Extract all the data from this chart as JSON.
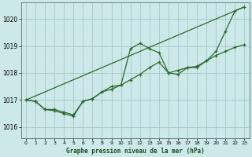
{
  "title": "Graphe pression niveau de la mer (hPa)",
  "bg_color": "#cce8e8",
  "grid_color": "#aacccc",
  "line_color": "#2d6a2d",
  "xlim": [
    -0.5,
    23.5
  ],
  "ylim": [
    1015.6,
    1020.6
  ],
  "yticks": [
    1016,
    1017,
    1018,
    1019,
    1020
  ],
  "xticks": [
    0,
    1,
    2,
    3,
    4,
    5,
    6,
    7,
    8,
    9,
    10,
    11,
    12,
    13,
    14,
    15,
    16,
    17,
    18,
    19,
    20,
    21,
    22,
    23
  ],
  "series1_x": [
    0,
    1,
    2,
    3,
    4,
    5,
    6,
    7,
    8,
    9,
    10,
    11,
    12,
    13,
    14,
    15,
    16,
    17,
    18,
    19,
    20,
    21,
    22,
    23
  ],
  "series1_y": [
    1017.0,
    1016.95,
    1016.65,
    1016.6,
    1016.5,
    1016.4,
    1016.95,
    1017.05,
    1017.3,
    1017.5,
    1017.55,
    1018.9,
    1019.1,
    1018.9,
    1018.75,
    1018.0,
    1017.95,
    1018.2,
    1018.2,
    1018.45,
    1018.8,
    1019.55,
    1020.3,
    1020.45
  ],
  "series2_x": [
    0,
    1,
    2,
    3,
    4,
    5,
    6,
    7,
    8,
    9,
    10,
    11,
    12,
    13,
    14,
    15,
    16,
    17,
    18,
    19,
    20,
    21,
    22,
    23
  ],
  "series2_y": [
    1017.0,
    1016.95,
    1016.65,
    1016.65,
    1016.55,
    1016.45,
    1016.95,
    1017.05,
    1017.3,
    1017.4,
    1017.55,
    1017.75,
    1017.95,
    1018.2,
    1018.4,
    1018.0,
    1018.1,
    1018.2,
    1018.25,
    1018.45,
    1018.65,
    1018.8,
    1018.95,
    1019.05
  ],
  "series3_x": [
    0,
    23
  ],
  "series3_y": [
    1017.0,
    1020.45
  ]
}
